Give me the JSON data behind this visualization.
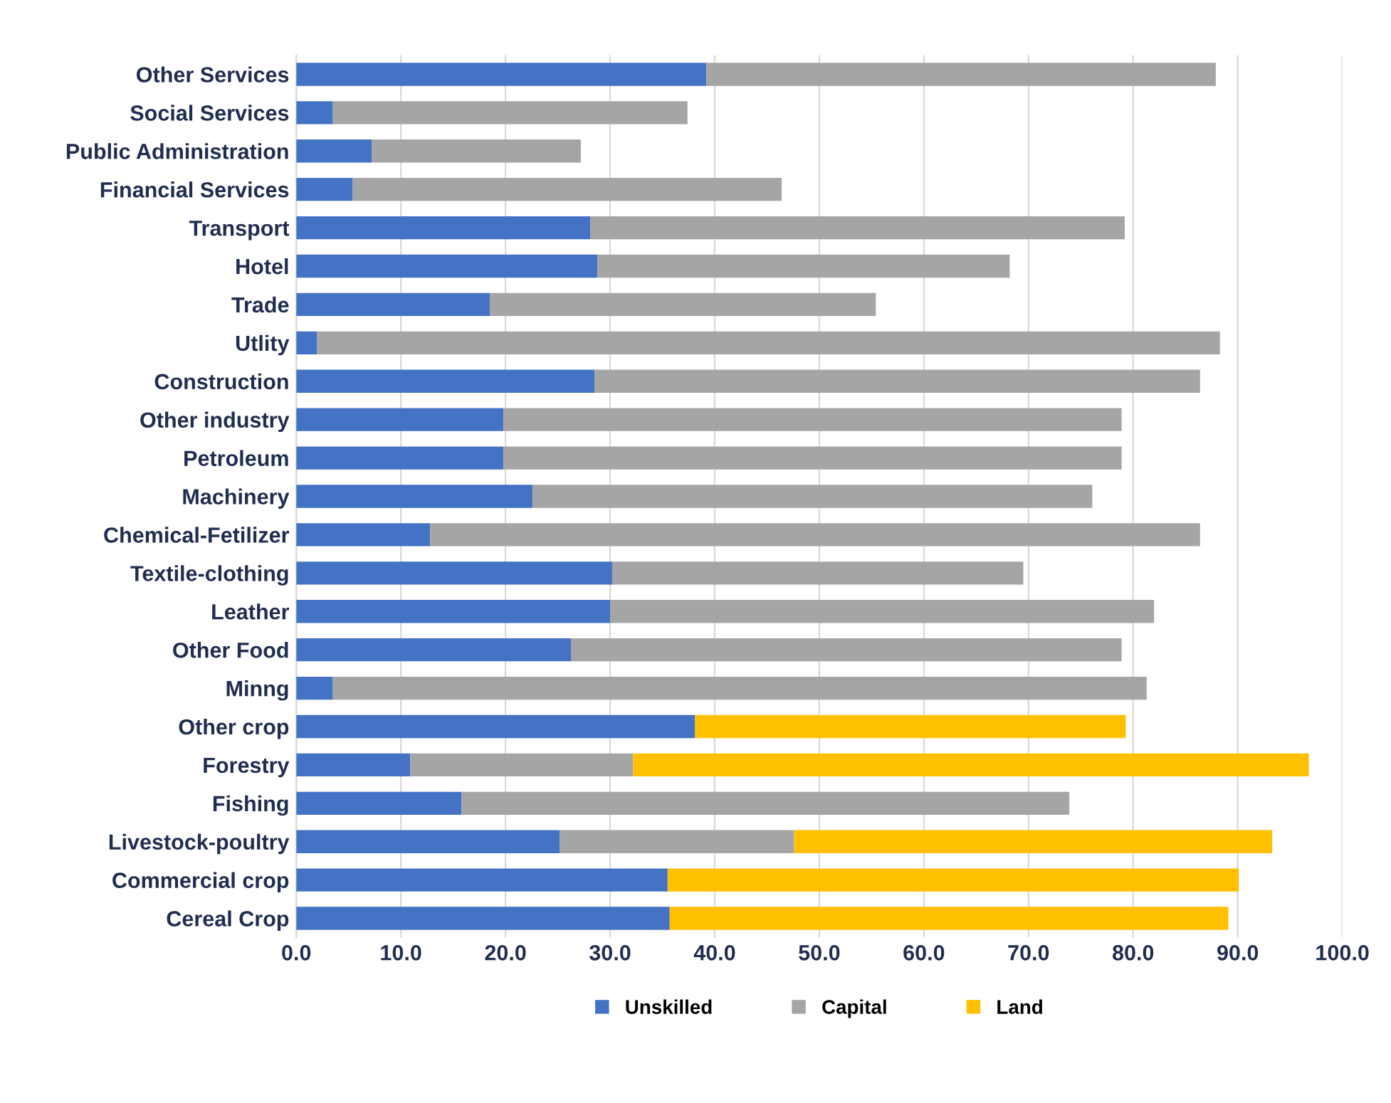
{
  "chart_data": {
    "type": "bar",
    "orientation": "horizontal",
    "stacked": true,
    "categories": [
      "Other Services",
      "Social Services",
      "Public Administration",
      "Financial Services",
      "Transport",
      "Hotel",
      "Trade",
      "Utlity",
      "Construction",
      "Other industry",
      "Petroleum",
      "Machinery",
      "Chemical-Fetilizer",
      "Textile-clothing",
      "Leather",
      "Other Food",
      "Minng",
      "Other crop",
      "Forestry",
      "Fishing",
      "Livestock-poultry",
      "Commercial crop",
      "Cereal Crop"
    ],
    "series": [
      {
        "name": "Unskilled",
        "color": "#4472c4",
        "values": [
          39.2,
          3.5,
          7.2,
          5.4,
          28.1,
          28.8,
          18.5,
          2.0,
          28.5,
          19.8,
          19.8,
          22.6,
          12.8,
          30.2,
          30.0,
          26.3,
          3.5,
          38.1,
          10.9,
          15.8,
          25.2,
          35.5,
          35.7
        ]
      },
      {
        "name": "Capital",
        "color": "#a5a5a5",
        "values": [
          48.7,
          33.9,
          20.0,
          41.0,
          51.1,
          39.4,
          36.9,
          86.3,
          57.9,
          59.1,
          59.1,
          53.5,
          73.6,
          39.3,
          52.0,
          52.6,
          77.8,
          0,
          21.3,
          58.1,
          22.4,
          0,
          0
        ]
      },
      {
        "name": "Land",
        "color": "#ffc000",
        "values": [
          0,
          0,
          0,
          0,
          0,
          0,
          0,
          0,
          0,
          0,
          0,
          0,
          0,
          0,
          0,
          0,
          0,
          41.2,
          64.6,
          0,
          45.7,
          54.6,
          53.4
        ]
      }
    ],
    "xlim": [
      0,
      100
    ],
    "xticks": [
      {
        "value": 0,
        "label": "0.0"
      },
      {
        "value": 10,
        "label": "10.0"
      },
      {
        "value": 20,
        "label": "20.0"
      },
      {
        "value": 30,
        "label": "30.0"
      },
      {
        "value": 40,
        "label": "40.0"
      },
      {
        "value": 50,
        "label": "50.0"
      },
      {
        "value": 60,
        "label": "60.0"
      },
      {
        "value": 70,
        "label": "70.0"
      },
      {
        "value": 80,
        "label": "80.0"
      },
      {
        "value": 90,
        "label": "90.0"
      },
      {
        "value": 100,
        "label": "100.0"
      }
    ],
    "grid": "x",
    "legend": "bottom"
  }
}
